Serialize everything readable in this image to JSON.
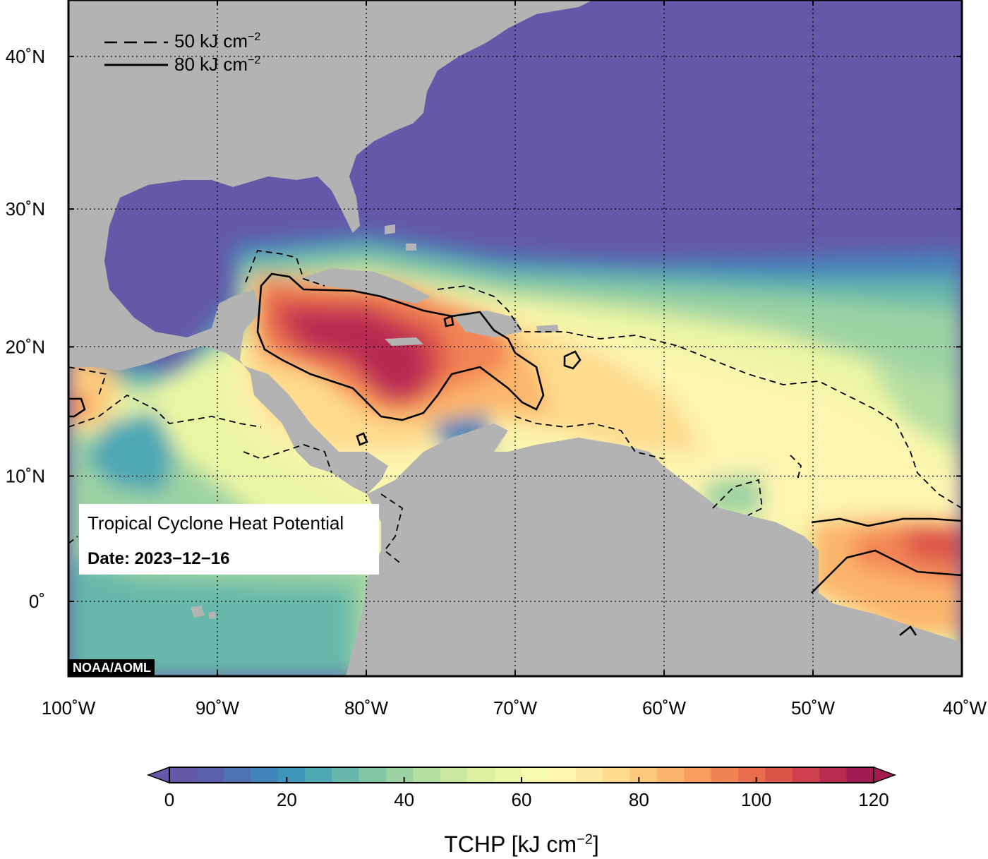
{
  "map": {
    "lat_labels": [
      {
        "lat": 40,
        "text": "40˚N"
      },
      {
        "lat": 30,
        "text": "30˚N"
      },
      {
        "lat": 20,
        "text": "20˚N"
      },
      {
        "lat": 10,
        "text": "10˚N"
      },
      {
        "lat": 0,
        "text": "0˚"
      }
    ],
    "lon_labels": [
      {
        "lon": -100,
        "text": "100˚W"
      },
      {
        "lon": -90,
        "text": "90˚W"
      },
      {
        "lon": -80,
        "text": "80˚W"
      },
      {
        "lon": -70,
        "text": "70˚W"
      },
      {
        "lon": -60,
        "text": "60˚W"
      },
      {
        "lon": -50,
        "text": "50˚W"
      },
      {
        "lon": -40,
        "text": "40˚W"
      }
    ],
    "colors": {
      "ocean_low": "#6558a8",
      "land": "#b3b3b3"
    }
  },
  "legend": {
    "contour_50": "50 kJ cm",
    "contour_80": "80 kJ cm",
    "superscript": "−2"
  },
  "info": {
    "title": "Tropical Cyclone Heat Potential",
    "date": "Date: 2023−12−16"
  },
  "credit": "NOAA/AOML",
  "colorbar": {
    "min": 0,
    "max": 120,
    "ticks": [
      "0",
      "20",
      "40",
      "60",
      "80",
      "100",
      "120"
    ],
    "colors": [
      "#6558a8",
      "#5d5fae",
      "#4f72b4",
      "#4484bc",
      "#3e97ba",
      "#4ea7b4",
      "#66b9aa",
      "#83c6a4",
      "#9dd3a3",
      "#b4dea2",
      "#cae8a0",
      "#dcf0a0",
      "#ebf6a4",
      "#f6fab0",
      "#fdf5b0",
      "#fee9a0",
      "#fedb8e",
      "#fdca7c",
      "#fcb56c",
      "#f99d5e",
      "#f28454",
      "#e96c4e",
      "#dd544b",
      "#cd3f4d",
      "#b92b52",
      "#a41b52"
    ],
    "unit_text": "TCHP [kJ cm",
    "unit_sup": "−2",
    "unit_close": "]"
  }
}
